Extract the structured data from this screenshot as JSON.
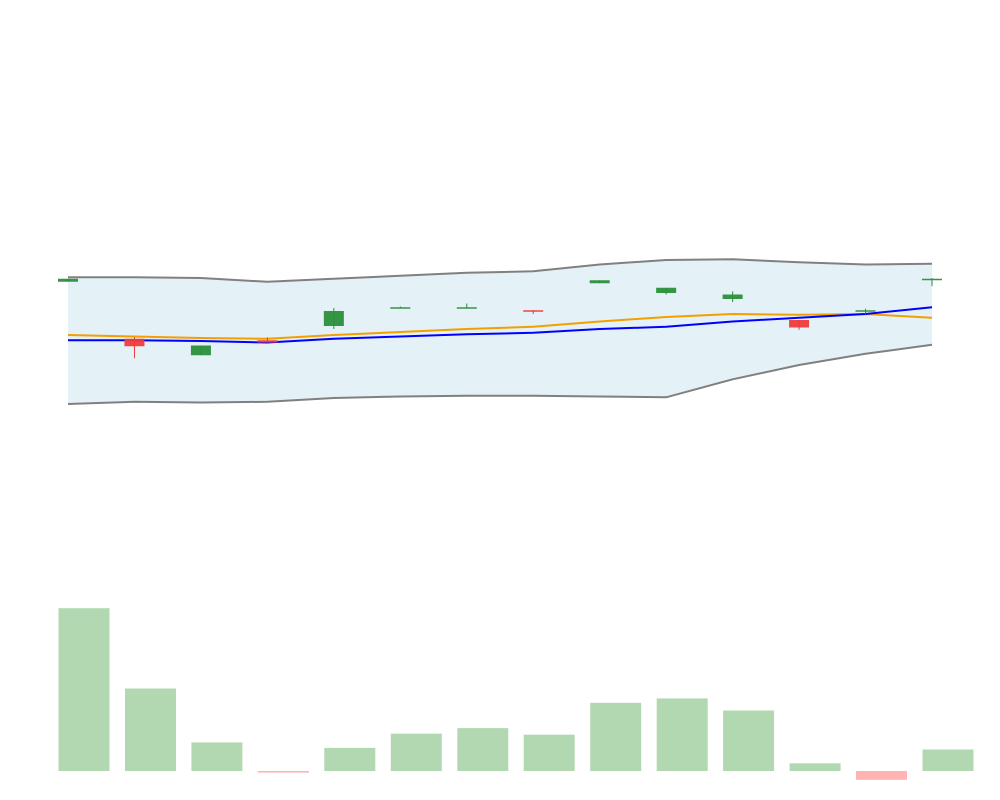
{
  "chart_data": {
    "type": "candlestick",
    "title": "",
    "xlabel": "",
    "ylabel": "",
    "legend": "none",
    "grid": false,
    "ylim": [
      -60,
      100
    ],
    "volume_ylim": [
      -10,
      160
    ],
    "colors": {
      "up": "#2a8f3b",
      "down": "#ee3b3b",
      "band_fill": "#e4f1f6",
      "band_line": "#808080",
      "ma_blue": "#0000ff",
      "ma_orange": "#f2a000",
      "volume_up": "#b2d8b2",
      "volume_down": "#ffb3b3"
    },
    "x": [
      0,
      1,
      2,
      3,
      4,
      5,
      6,
      7,
      8,
      9,
      10,
      11,
      12,
      13
    ],
    "candles": [
      {
        "open": 45.5,
        "close": 47.5,
        "high": 47.5,
        "low": 45.5
      },
      {
        "open": 7.5,
        "close": 2.5,
        "high": 8.5,
        "low": -5.5
      },
      {
        "open": -3.5,
        "close": 3.0,
        "high": 3.0,
        "low": -3.5
      },
      {
        "open": 6.5,
        "close": 5.0,
        "high": 8.5,
        "low": 5.0
      },
      {
        "open": 16.0,
        "close": 26.0,
        "high": 28.0,
        "low": 14.0
      },
      {
        "open": 28.0,
        "close": 28.5,
        "high": 29.0,
        "low": 28.0
      },
      {
        "open": 28.0,
        "close": 28.5,
        "high": 31.0,
        "low": 28.0
      },
      {
        "open": 26.5,
        "close": 25.5,
        "high": 26.5,
        "low": 24.0
      },
      {
        "open": 44.5,
        "close": 46.5,
        "high": 46.5,
        "low": 44.5
      },
      {
        "open": 38.0,
        "close": 41.5,
        "high": 41.5,
        "low": 37.0
      },
      {
        "open": 34.0,
        "close": 37.0,
        "high": 39.0,
        "low": 32.0
      },
      {
        "open": 20.0,
        "close": 15.0,
        "high": 20.0,
        "low": 13.5
      },
      {
        "open": 26.0,
        "close": 26.5,
        "high": 27.5,
        "low": 24.0
      },
      {
        "open": 47.0,
        "close": 47.5,
        "high": 48.0,
        "low": 42.5
      }
    ],
    "series": [
      {
        "values": [
          10.0,
          9.0,
          8.0,
          7.5,
          10.0,
          12.0,
          14.0,
          15.5,
          19.0,
          22.0,
          24.0,
          23.5,
          24.0,
          21.5
        ]
      },
      {
        "values": [
          6.5,
          6.5,
          6.0,
          5.0,
          7.5,
          9.0,
          10.5,
          11.5,
          14.0,
          15.5,
          19.0,
          21.5,
          24.0,
          28.5
        ]
      },
      {
        "values": [
          48.5,
          48.5,
          48.0,
          45.5,
          47.5,
          49.5,
          51.5,
          52.5,
          57.0,
          60.0,
          60.5,
          58.5,
          57.0,
          57.5
        ]
      },
      {
        "values": [
          -36.0,
          -34.5,
          -35.0,
          -34.5,
          -32.0,
          -31.0,
          -30.5,
          -30.5,
          -31.0,
          -31.5,
          -19.5,
          -10.0,
          -2.5,
          3.5
        ]
      }
    ],
    "volume": [
      148.0,
      75.0,
      26.0,
      -1.5,
      21.0,
      34.0,
      39.0,
      33.0,
      62.0,
      66.0,
      55.0,
      7.0,
      -8.0,
      19.5
    ]
  }
}
